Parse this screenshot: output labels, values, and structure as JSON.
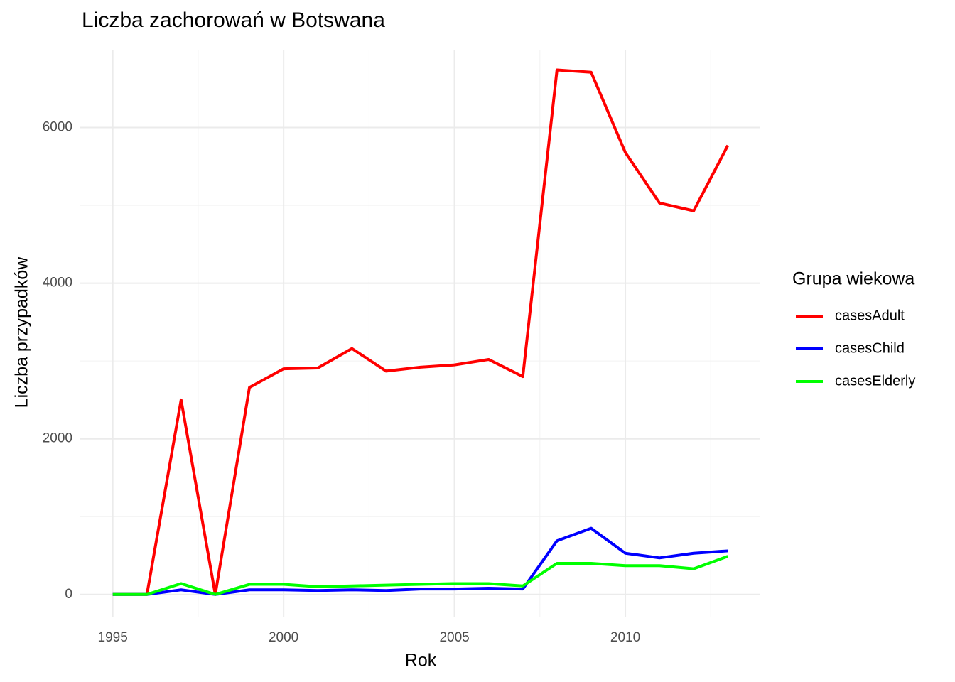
{
  "chart_data": {
    "type": "line",
    "title": "Liczba zachorowań w Botswana",
    "x_label": "Rok",
    "y_label": "Liczba przypadków",
    "legend_title": "Grupa wiekowa",
    "legend_position": "right",
    "grid": true,
    "x": [
      1995,
      1996,
      1997,
      1998,
      1999,
      2000,
      2001,
      2002,
      2003,
      2004,
      2005,
      2006,
      2007,
      2008,
      2009,
      2010,
      2011,
      2012,
      2013
    ],
    "series": [
      {
        "name": "casesAdult",
        "color": "#ff0000",
        "values": [
          0,
          0,
          2500,
          0,
          2660,
          2900,
          2910,
          3160,
          2870,
          2920,
          2950,
          3020,
          2800,
          6740,
          6710,
          5680,
          5030,
          4930,
          5770
        ]
      },
      {
        "name": "casesChild",
        "color": "#0000ff",
        "values": [
          0,
          0,
          60,
          0,
          60,
          60,
          50,
          60,
          50,
          70,
          70,
          80,
          70,
          690,
          850,
          530,
          470,
          530,
          560
        ]
      },
      {
        "name": "casesElderly",
        "color": "#00ff00",
        "values": [
          0,
          0,
          140,
          0,
          130,
          130,
          100,
          110,
          120,
          130,
          140,
          140,
          110,
          400,
          400,
          370,
          370,
          330,
          490
        ]
      }
    ],
    "xlim": [
      1994.05,
      2013.95
    ],
    "ylim": [
      -285,
      7000
    ],
    "xticks": [
      1995,
      2000,
      2005,
      2010
    ],
    "yticks": [
      0,
      2000,
      4000,
      6000
    ],
    "x_minor_ticks": [
      1997.5,
      2002.5,
      2007.5,
      2012.5
    ],
    "y_minor_ticks": [
      1000,
      3000,
      5000
    ]
  }
}
